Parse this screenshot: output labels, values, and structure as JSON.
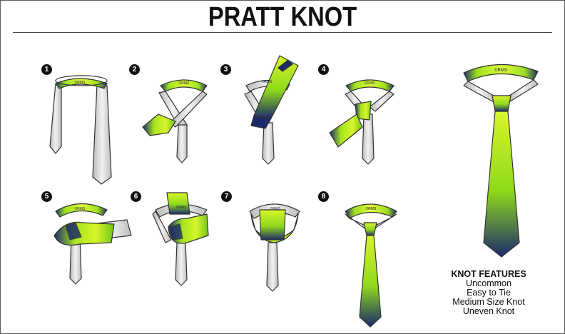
{
  "title": "PRATT KNOT",
  "colors": {
    "tie_green": "#c6f21c",
    "tie_navy": "#1c2a6b",
    "tie_gray": "#cfcfcf",
    "outline": "#333333"
  },
  "steps": [
    {
      "number": "1",
      "brand": "©RMS"
    },
    {
      "number": "2",
      "brand": "©RMS"
    },
    {
      "number": "3",
      "brand": "©RMS"
    },
    {
      "number": "4",
      "brand": "©RMS"
    },
    {
      "number": "5",
      "brand": "©RMS"
    },
    {
      "number": "6",
      "brand": "©RMS"
    },
    {
      "number": "7",
      "brand": "©RMS"
    },
    {
      "number": "8",
      "brand": "©RMS"
    }
  ],
  "final_brand": "©RMS",
  "features": {
    "heading": "KNOT FEATURES",
    "items": [
      "Uncommon",
      "Easy to Tie",
      "Medium Size Knot",
      "Uneven Knot"
    ]
  }
}
